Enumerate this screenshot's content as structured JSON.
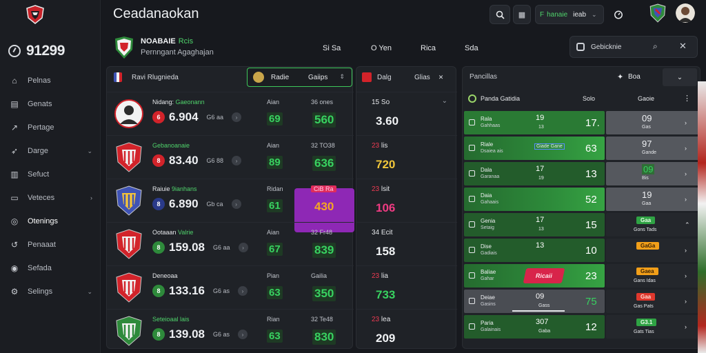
{
  "app": {
    "title": "Ceadanaokan"
  },
  "topbar": {
    "pill_green": "F",
    "pill_green_text": "hanaie",
    "pill_white_text": "ieab"
  },
  "sidebar": {
    "balance": "91299",
    "items": [
      {
        "label": "Pelnas",
        "icon": "home-icon",
        "chevron": false
      },
      {
        "label": "Genats",
        "icon": "calendar-icon",
        "chevron": false
      },
      {
        "label": "Pertage",
        "icon": "chart-icon",
        "chevron": false
      },
      {
        "label": "Darge",
        "icon": "tag-icon",
        "chevron": true
      },
      {
        "label": "Sefuct",
        "icon": "building-icon",
        "chevron": false
      },
      {
        "label": "Veteces",
        "icon": "monitor-icon",
        "chevron": true
      },
      {
        "label": "Otenings",
        "icon": "settings-icon",
        "chevron": false
      },
      {
        "label": "Penaaat",
        "icon": "refresh-icon",
        "chevron": false
      },
      {
        "label": "Sefada",
        "icon": "layers-icon",
        "chevron": false
      },
      {
        "label": "Selings",
        "icon": "gear-icon",
        "chevron": true
      }
    ]
  },
  "match": {
    "title": "NOABAIE",
    "title_green": "Rcis",
    "subtitle": "Pernngant Agaghajan",
    "tabs": [
      "Si Sa",
      "O Yen",
      "Rica",
      "Sda"
    ]
  },
  "search": {
    "label": "Gebicknie"
  },
  "main": {
    "header_left": "Ravi Rlugnieda",
    "header_select_a": "Radie",
    "header_select_b": "Gaiips",
    "rows": [
      {
        "name": "Nidang: ",
        "name_green": "Gaeonann",
        "badge": "6",
        "badge_color": "#d2232a",
        "value": "6.904",
        "small": "G6 aa",
        "col_lbl": "Aian",
        "col_val": "69",
        "col2_lbl": "36 ones",
        "col2_val": "560",
        "col2_color": "green"
      },
      {
        "name": "",
        "name_green": "Gebanoanaie",
        "badge": "8",
        "badge_color": "#d2232a",
        "value": "83.40",
        "small": "G6 88",
        "col_lbl": "Aian",
        "col_val": "89",
        "col2_lbl": "32 TO38",
        "col2_val": "636",
        "col2_color": "green"
      },
      {
        "name": "Raiuie ",
        "name_green": "9ianhans",
        "badge": "8",
        "badge_color": "#2a3a8a",
        "value": "6.890",
        "small": "Gb ca",
        "col_lbl": "Ridan",
        "col_val": "61",
        "col2_lbl": "CiB Ra",
        "col2_val": "430",
        "col2_color": "purple"
      },
      {
        "name": "Ootaaan ",
        "name_green": "Valrie",
        "badge": "8",
        "badge_color": "#2e8a3b",
        "value": "159.08",
        "small": "G6 aa",
        "col_lbl": "Aian",
        "col_val": "67",
        "col2_lbl": "32 Fr48",
        "col2_val": "839",
        "col2_color": "green"
      },
      {
        "name": "Deneoaa",
        "name_green": "",
        "badge": "8",
        "badge_color": "#2e8a3b",
        "value": "133.16",
        "small": "G6 as",
        "col_lbl": "Pian",
        "col_val": "63",
        "col2_lbl": "Gailia",
        "col2_val": "350",
        "col2_color": "green"
      },
      {
        "name": "",
        "name_green": "Seteioaal lais",
        "badge": "8",
        "badge_color": "#2e8a3b",
        "value": "139.08",
        "small": "G6 as",
        "col_lbl": "Rian",
        "col_val": "63",
        "col2_lbl": "32 Te48",
        "col2_val": "830",
        "col2_color": "green"
      }
    ]
  },
  "mid": {
    "header_a": "Dalg",
    "header_b": "Glias",
    "rows": [
      {
        "lbl_red": "",
        "lbl": "15 So",
        "val": "3.60",
        "color": "#f0f2f4"
      },
      {
        "lbl_red": "23",
        "lbl": "lis",
        "val": "720",
        "color": "#f0c63a"
      },
      {
        "lbl_red": "23",
        "lbl": "lsit",
        "val": "106",
        "color": "#ef3b82"
      },
      {
        "lbl_red": "",
        "lbl": "34 Ecit",
        "val": "158",
        "color": "#f0f2f4"
      },
      {
        "lbl_red": "23",
        "lbl": "lia",
        "val": "733",
        "color": "#38d160"
      },
      {
        "lbl_red": "23",
        "lbl": "lea",
        "val": "209",
        "color": "#f0f2f4"
      }
    ]
  },
  "right": {
    "title": "Pancillas",
    "filter": "Boa",
    "sub_title": "Panda Gatidia",
    "sub_col_a": "Solo",
    "sub_col_b": "Gaoie",
    "rows": [
      {
        "n1": "Rala",
        "n2": "Gahhaas",
        "c1": "19",
        "c1s": "13",
        "v": "17.",
        "g1": "09",
        "g2": "Gas",
        "style": "gcell",
        "gy": "gycell"
      },
      {
        "n1": "Riale",
        "n2": "Dsaiea ais",
        "c1": "",
        "c1s": "Giade Gane",
        "v": "63",
        "g1": "97",
        "g2": "Gande",
        "style": "gcell mixed",
        "gy": "gycell"
      },
      {
        "n1": "Dala",
        "n2": "Garanaa",
        "c1": "17",
        "c1s": "19",
        "v": "13",
        "g1": "09",
        "g2": "Bis",
        "style": "gcell dark",
        "gy": "gycell"
      },
      {
        "n1": "Daia",
        "n2": "Gahaais",
        "c1": "",
        "c1s": "",
        "v": "52",
        "g1": "19",
        "g2": "Gaa",
        "style": "gcell mixed",
        "gy": "gycell"
      },
      {
        "n1": "Genia",
        "n2": "Setaig",
        "c1": "17",
        "c1s": "13",
        "v": "15",
        "g1": "",
        "g2": "Gons Tads",
        "style": "gcell dark",
        "gy": "gycell dark",
        "tag": "Gaa",
        "tag_cls": "gr"
      },
      {
        "n1": "Dise",
        "n2": "Gadiais",
        "c1": "13",
        "c1s": "",
        "v": "10",
        "g1": "",
        "g2": "",
        "style": "gcell dark",
        "gy": "gycell dark",
        "tag": "GaGa",
        "tag_cls": "or"
      },
      {
        "n1": "Baliae",
        "n2": "Gahar",
        "c1": "",
        "c1s": "",
        "v": "23",
        "g1": "",
        "g2": "Gans Idas",
        "style": "gcell mixed",
        "gy": "gycell dark",
        "tag": "Gaea",
        "tag_cls": "or",
        "stamp": "Ricaii"
      },
      {
        "n1": "Deiae",
        "n2": "Gasins",
        "c1": "09",
        "c1s": "Gass",
        "v": "75",
        "g1": "",
        "g2": "Gas Pats",
        "style": "gcell grey",
        "gy": "gycell dark",
        "tag": "Gaa",
        "tag_cls": "rd"
      },
      {
        "n1": "Paria",
        "n2": "Galainais",
        "c1": "307",
        "c1s": "Gaba",
        "v": "12",
        "g1": "",
        "g2": "Gats Tias",
        "style": "gcell dark",
        "gy": "gycell dark",
        "tag": "G3.1",
        "tag_cls": "gr"
      }
    ]
  }
}
